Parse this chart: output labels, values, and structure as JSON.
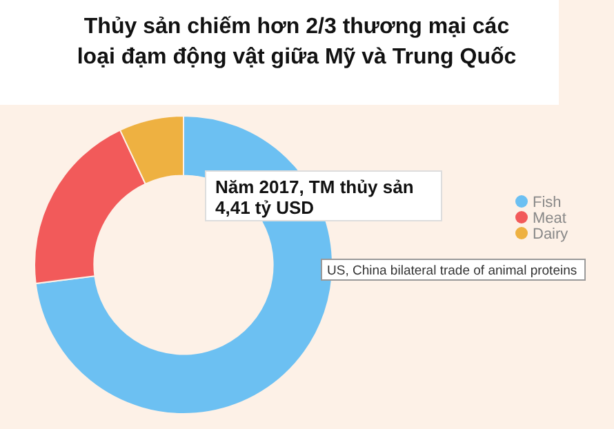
{
  "chart_data": {
    "type": "donut",
    "title": "Thủy sản chiếm hơn 2/3 thương mại các\nloại đạm động vật giữa Mỹ và Trung Quốc",
    "categories": [
      "Fish",
      "Meat",
      "Dairy"
    ],
    "values": [
      73,
      20,
      7
    ],
    "colors": [
      "#6cc0f2",
      "#f25a5a",
      "#eeb141"
    ],
    "legend": "right",
    "annotations": [
      "Năm 2017, TM thủy sản\n4,41 tỷ USD",
      "US, China bilateral trade of animal proteins"
    ]
  }
}
